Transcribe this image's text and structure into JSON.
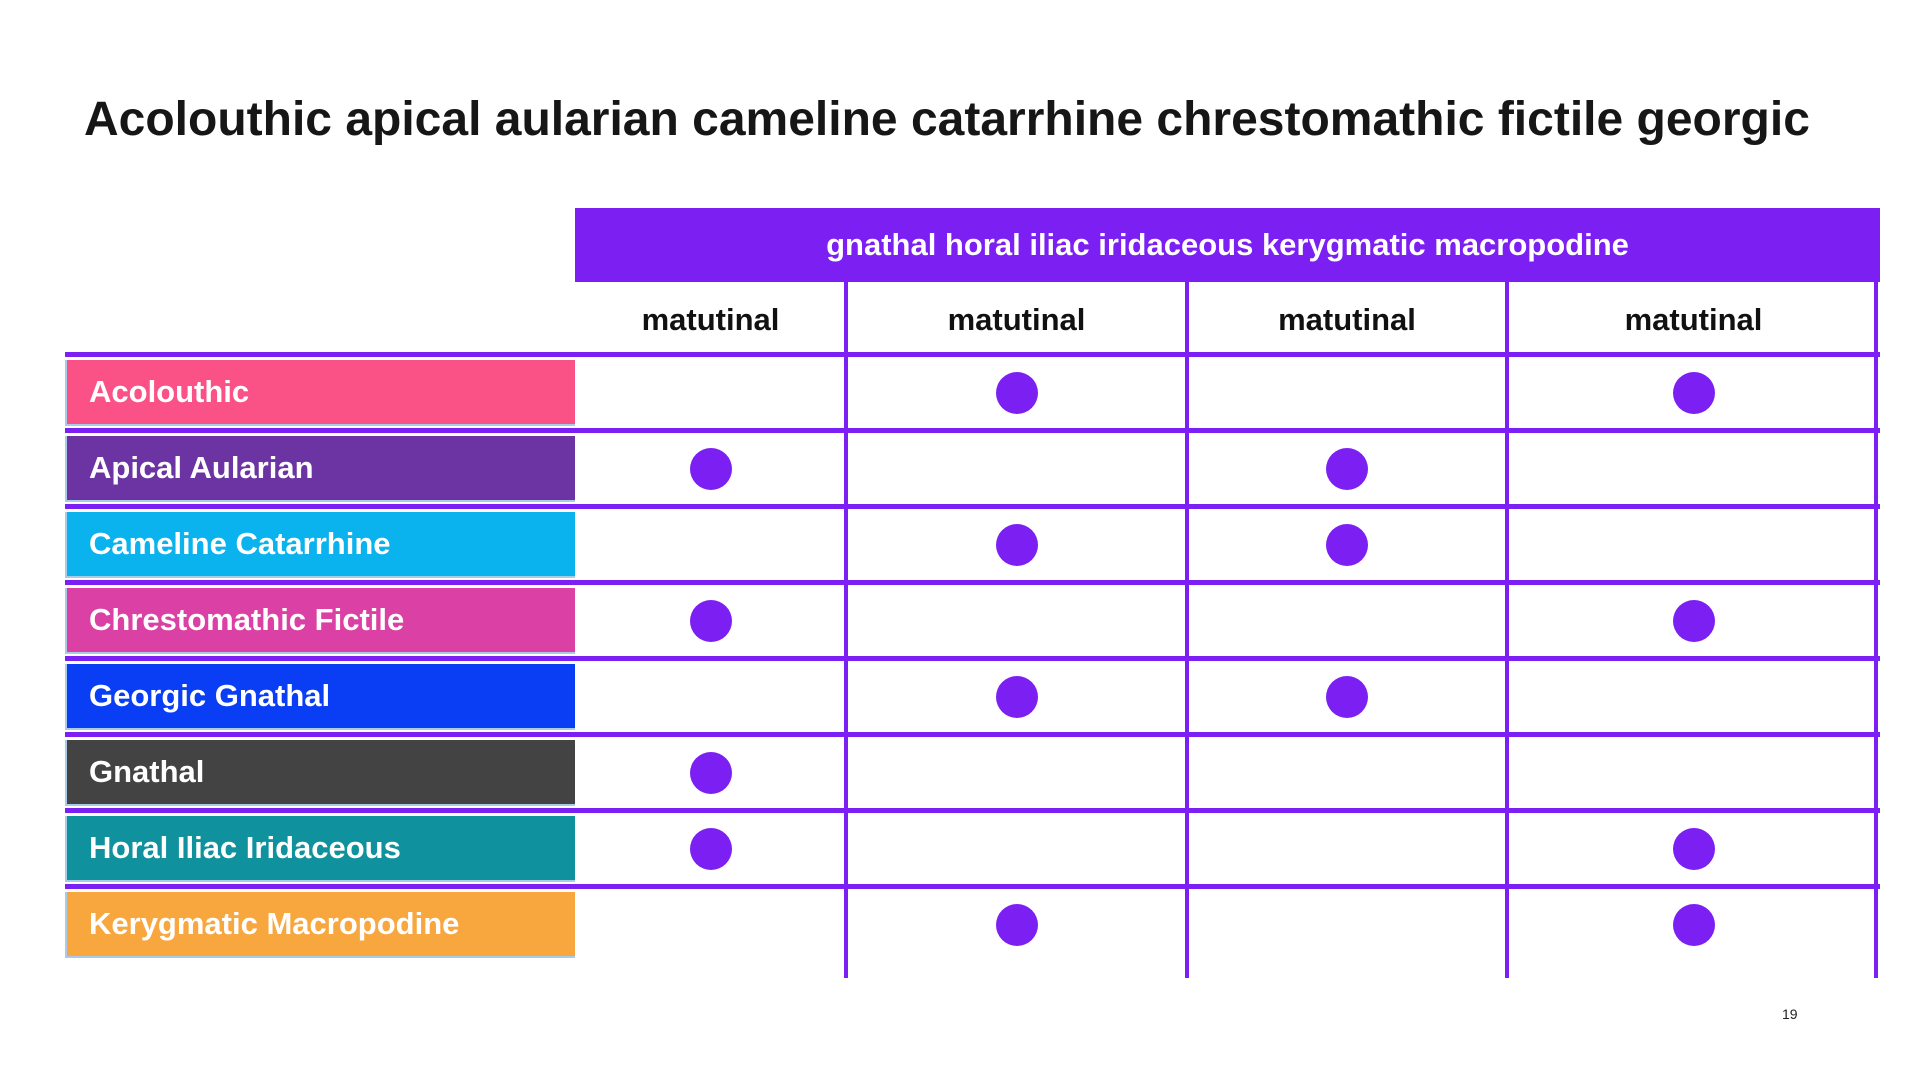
{
  "title": "Acolouthic apical aularian cameline catarrhine chrestomathic fictile georgic",
  "page_number": "19",
  "colors": {
    "accent_purple": "#7B1FF2",
    "label_border": "#A9CBE8",
    "header_text": "#111111",
    "title_text": "#161616"
  },
  "matrix": {
    "group_header": "gnathal horal iliac iridaceous kerygmatic macropodine",
    "columns": [
      "matutinal",
      "matutinal",
      "matutinal",
      "matutinal"
    ],
    "rows": [
      {
        "label": "Acolouthic",
        "color": "#FA5287",
        "dots": [
          false,
          true,
          false,
          true
        ]
      },
      {
        "label": "Apical Aularian",
        "color": "#6B34A2",
        "dots": [
          true,
          false,
          true,
          false
        ]
      },
      {
        "label": "Cameline Catarrhine",
        "color": "#0AB2EE",
        "dots": [
          false,
          true,
          true,
          false
        ]
      },
      {
        "label": "Chrestomathic Fictile",
        "color": "#DB41A4",
        "dots": [
          true,
          false,
          false,
          true
        ]
      },
      {
        "label": "Georgic Gnathal",
        "color": "#0A3EF5",
        "dots": [
          false,
          true,
          true,
          false
        ]
      },
      {
        "label": "Gnathal",
        "color": "#434343",
        "dots": [
          true,
          false,
          false,
          false
        ]
      },
      {
        "label": "Horal Iliac Iridaceous",
        "color": "#0F929D",
        "dots": [
          true,
          false,
          false,
          true
        ]
      },
      {
        "label": "Kerygmatic Macropodine",
        "color": "#F8A73E",
        "dots": [
          false,
          true,
          false,
          true
        ]
      }
    ]
  },
  "chart_data": {
    "type": "table",
    "title": "Acolouthic apical aularian cameline catarrhine chrestomathic fictile georgic",
    "column_group_header": "gnathal horal iliac iridaceous kerygmatic macropodine",
    "columns": [
      "matutinal",
      "matutinal",
      "matutinal",
      "matutinal"
    ],
    "rows": [
      "Acolouthic",
      "Apical Aularian",
      "Cameline Catarrhine",
      "Chrestomathic Fictile",
      "Georgic Gnathal",
      "Gnathal",
      "Horal Iliac Iridaceous",
      "Kerygmatic Macropodine"
    ],
    "cells": [
      [
        0,
        1,
        0,
        1
      ],
      [
        1,
        0,
        1,
        0
      ],
      [
        0,
        1,
        1,
        0
      ],
      [
        1,
        0,
        0,
        1
      ],
      [
        0,
        1,
        1,
        0
      ],
      [
        1,
        0,
        0,
        0
      ],
      [
        1,
        0,
        0,
        1
      ],
      [
        0,
        1,
        0,
        1
      ]
    ],
    "cell_marker": "filled-circle",
    "legend_position": "none",
    "grid": true
  }
}
